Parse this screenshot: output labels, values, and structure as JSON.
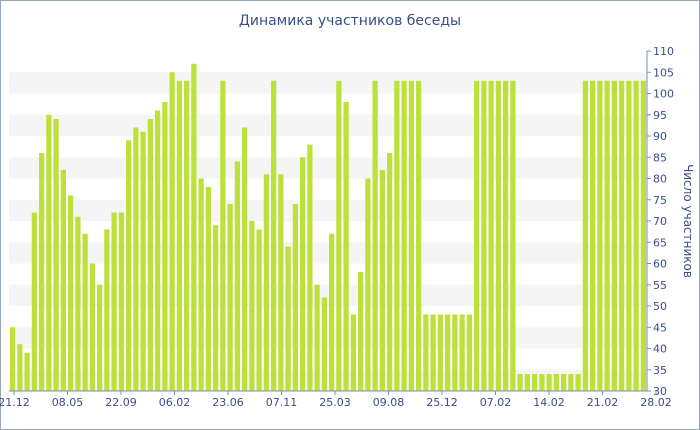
{
  "chart_data": {
    "type": "bar",
    "title": "Динамика участников беседы",
    "ylabel": "Число участников",
    "ylim": [
      30,
      110
    ],
    "y_ticks": [
      110,
      105,
      100,
      95,
      90,
      85,
      80,
      75,
      70,
      65,
      60,
      55,
      50,
      45,
      40,
      35,
      30
    ],
    "x_tick_labels": [
      "21.12",
      "08.05",
      "22.09",
      "06.02",
      "23.06",
      "07.11",
      "25.03",
      "09.08",
      "25.12",
      "07.02",
      "14.02",
      "21.02",
      "28.02"
    ],
    "grid": true,
    "y_axis_position": "right",
    "colors": {
      "bar": "#bde03a",
      "band": "#f5f5f5",
      "text": "#3a4f86",
      "axis": "#7f8fa6"
    },
    "values": [
      45,
      41,
      39,
      72,
      86,
      95,
      94,
      82,
      76,
      71,
      67,
      60,
      55,
      68,
      72,
      72,
      89,
      92,
      91,
      94,
      96,
      98,
      105,
      103,
      103,
      107,
      80,
      78,
      69,
      103,
      74,
      84,
      92,
      70,
      68,
      81,
      103,
      81,
      64,
      74,
      85,
      88,
      55,
      52,
      67,
      103,
      98,
      48,
      58,
      80,
      103,
      82,
      86,
      103,
      103,
      103,
      103,
      48,
      48,
      48,
      48,
      48,
      48,
      48,
      103,
      103,
      103,
      103,
      103,
      103,
      34,
      34,
      34,
      34,
      34,
      34,
      34,
      34,
      34,
      103,
      103,
      103,
      103,
      103,
      103,
      103,
      103,
      103
    ]
  }
}
